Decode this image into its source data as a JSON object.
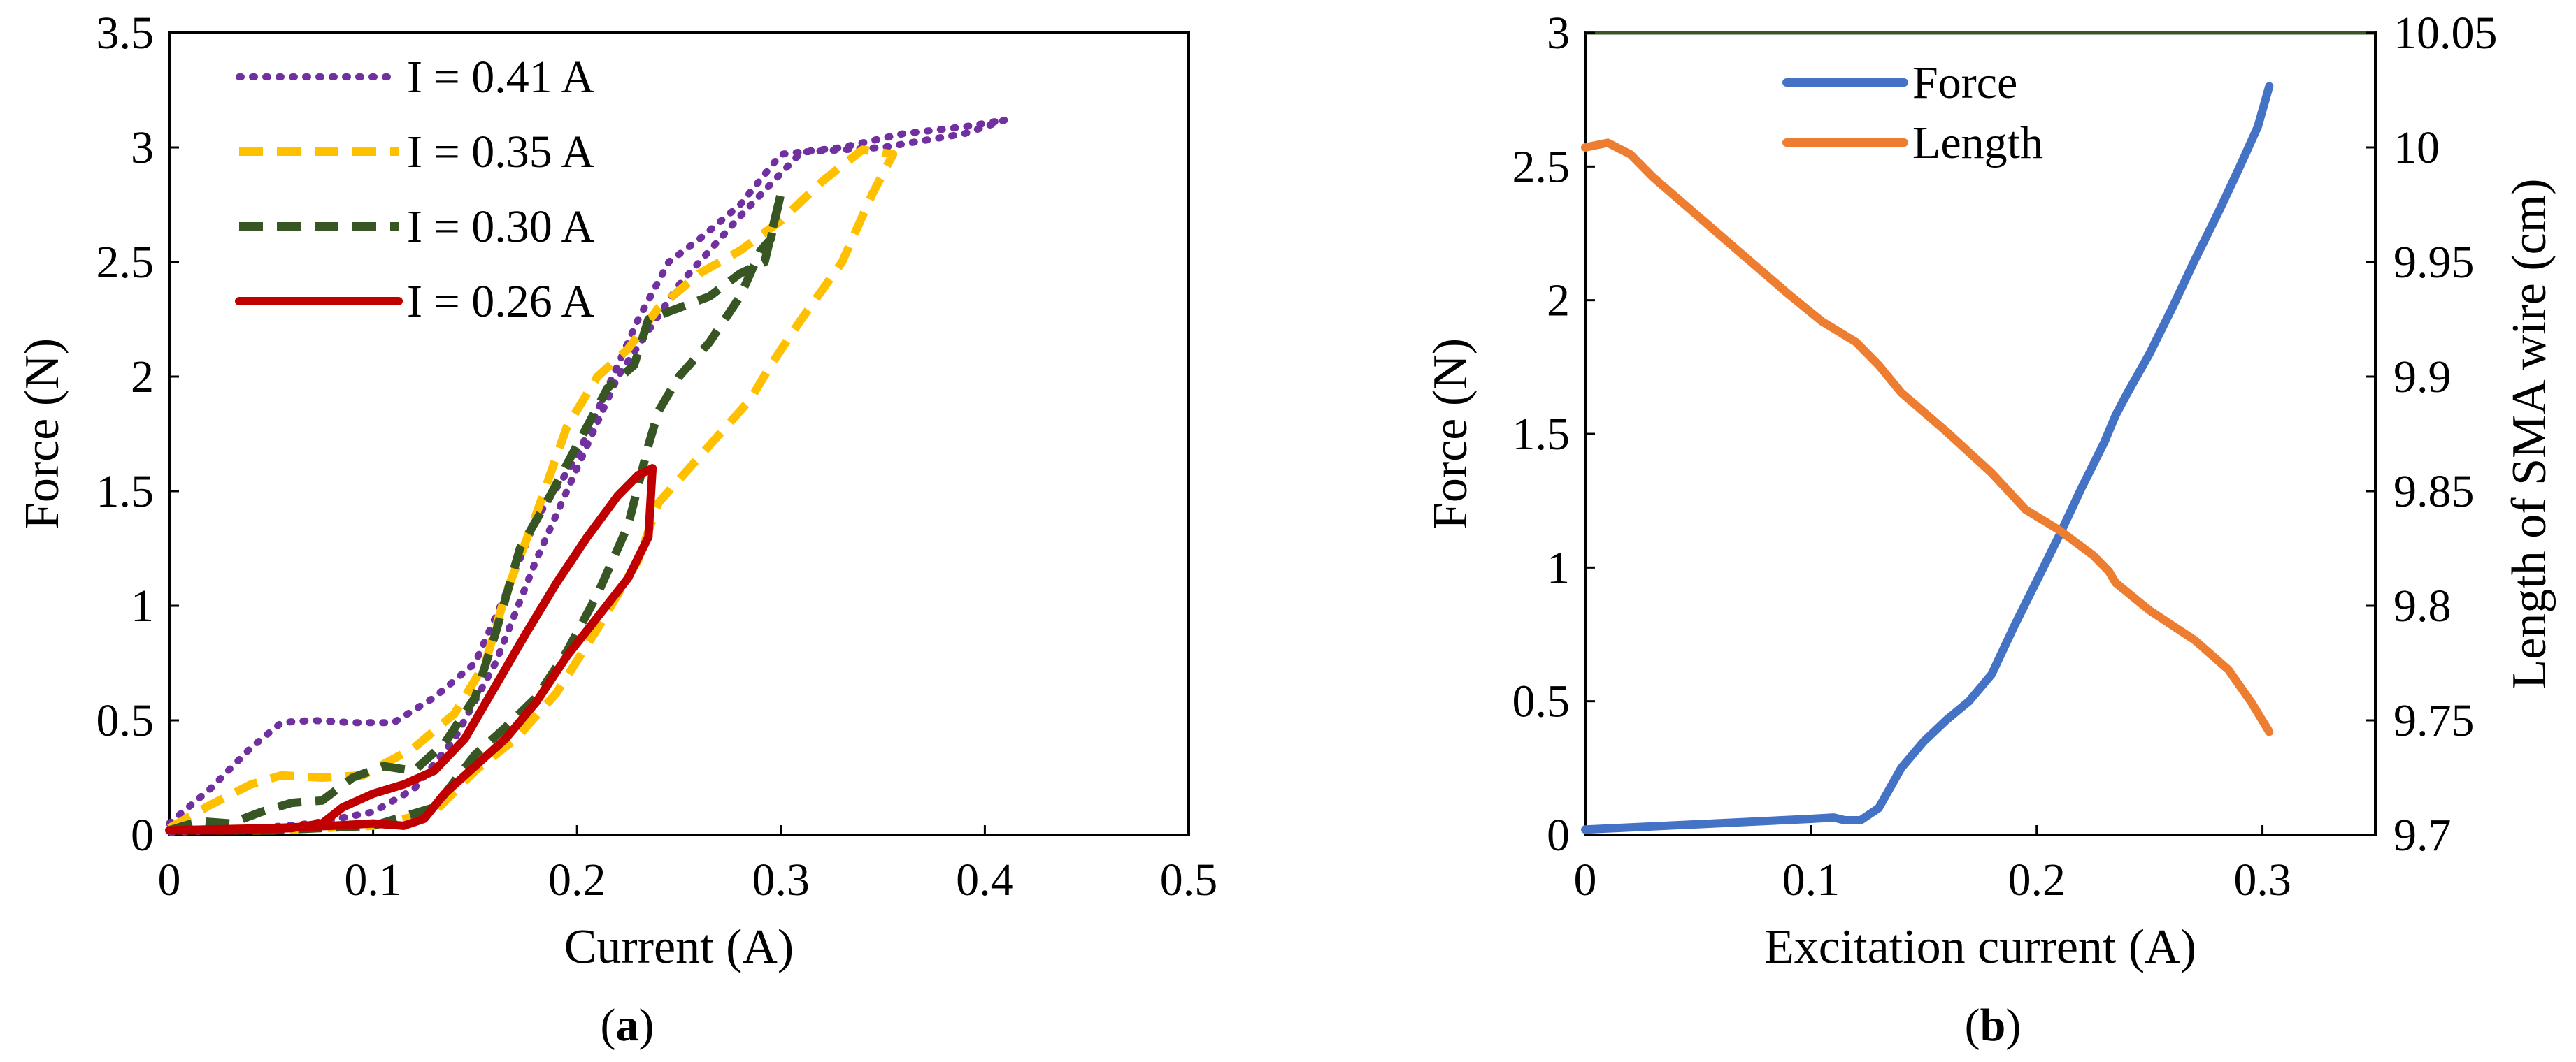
{
  "chart_data": [
    {
      "type": "line",
      "panel_label": "a",
      "title": "",
      "xlabel": "Current (A)",
      "ylabel": "Force (N)",
      "xlim": [
        0,
        0.5
      ],
      "ylim": [
        0,
        3.5
      ],
      "xticks": [
        0,
        0.1,
        0.2,
        0.3,
        0.4,
        0.5
      ],
      "xtick_labels": [
        "0",
        "0.1",
        "0.2",
        "0.3",
        "0.4",
        "0.5"
      ],
      "yticks": [
        0,
        0.5,
        1,
        1.5,
        2,
        2.5,
        3,
        3.5
      ],
      "ytick_labels": [
        "0",
        "0.5",
        "1",
        "1.5",
        "2",
        "2.5",
        "3",
        "3.5"
      ],
      "grid": false,
      "legend_position": "top-left",
      "series": [
        {
          "name": "I = 0.41 A",
          "color": "#7030a0",
          "style": "dotted",
          "points": [
            [
              0,
              0.05
            ],
            [
              0.02,
              0.2
            ],
            [
              0.04,
              0.38
            ],
            [
              0.055,
              0.49
            ],
            [
              0.07,
              0.5
            ],
            [
              0.09,
              0.49
            ],
            [
              0.11,
              0.49
            ],
            [
              0.13,
              0.6
            ],
            [
              0.15,
              0.75
            ],
            [
              0.165,
              1.05
            ],
            [
              0.18,
              1.38
            ],
            [
              0.2,
              1.65
            ],
            [
              0.215,
              1.95
            ],
            [
              0.23,
              2.25
            ],
            [
              0.245,
              2.5
            ],
            [
              0.26,
              2.6
            ],
            [
              0.28,
              2.75
            ],
            [
              0.3,
              2.97
            ],
            [
              0.33,
              3.0
            ],
            [
              0.36,
              3.06
            ],
            [
              0.39,
              3.09
            ],
            [
              0.41,
              3.12
            ],
            [
              0.39,
              3.06
            ],
            [
              0.35,
              3.0
            ],
            [
              0.31,
              2.98
            ],
            [
              0.28,
              2.7
            ],
            [
              0.25,
              2.4
            ],
            [
              0.22,
              2.0
            ],
            [
              0.2,
              1.6
            ],
            [
              0.18,
              1.2
            ],
            [
              0.16,
              0.75
            ],
            [
              0.14,
              0.42
            ],
            [
              0.12,
              0.2
            ],
            [
              0.1,
              0.1
            ],
            [
              0.07,
              0.05
            ],
            [
              0.03,
              0.02
            ],
            [
              0,
              0.01
            ]
          ]
        },
        {
          "name": "I = 0.35 A",
          "color": "#ffc000",
          "style": "dashed",
          "points": [
            [
              0,
              0.03
            ],
            [
              0.02,
              0.13
            ],
            [
              0.04,
              0.22
            ],
            [
              0.055,
              0.26
            ],
            [
              0.075,
              0.25
            ],
            [
              0.095,
              0.26
            ],
            [
              0.12,
              0.38
            ],
            [
              0.14,
              0.53
            ],
            [
              0.155,
              0.75
            ],
            [
              0.165,
              1.05
            ],
            [
              0.18,
              1.4
            ],
            [
              0.195,
              1.78
            ],
            [
              0.21,
              2.0
            ],
            [
              0.225,
              2.12
            ],
            [
              0.24,
              2.3
            ],
            [
              0.26,
              2.45
            ],
            [
              0.28,
              2.55
            ],
            [
              0.3,
              2.68
            ],
            [
              0.32,
              2.85
            ],
            [
              0.34,
              2.99
            ],
            [
              0.355,
              2.97
            ],
            [
              0.345,
              2.8
            ],
            [
              0.33,
              2.5
            ],
            [
              0.31,
              2.25
            ],
            [
              0.295,
              2.05
            ],
            [
              0.285,
              1.9
            ],
            [
              0.27,
              1.75
            ],
            [
              0.255,
              1.6
            ],
            [
              0.24,
              1.45
            ],
            [
              0.23,
              1.2
            ],
            [
              0.21,
              0.9
            ],
            [
              0.19,
              0.62
            ],
            [
              0.17,
              0.42
            ],
            [
              0.15,
              0.28
            ],
            [
              0.13,
              0.1
            ],
            [
              0.1,
              0.04
            ],
            [
              0.05,
              0.02
            ],
            [
              0,
              0.02
            ]
          ]
        },
        {
          "name": "I = 0.30 A",
          "color": "#375623",
          "style": "dashed",
          "points": [
            [
              0,
              0.02
            ],
            [
              0.015,
              0.06
            ],
            [
              0.03,
              0.05
            ],
            [
              0.045,
              0.1
            ],
            [
              0.06,
              0.14
            ],
            [
              0.075,
              0.15
            ],
            [
              0.09,
              0.25
            ],
            [
              0.105,
              0.3
            ],
            [
              0.12,
              0.28
            ],
            [
              0.135,
              0.4
            ],
            [
              0.15,
              0.6
            ],
            [
              0.16,
              0.88
            ],
            [
              0.172,
              1.25
            ],
            [
              0.185,
              1.45
            ],
            [
              0.2,
              1.7
            ],
            [
              0.215,
              1.95
            ],
            [
              0.228,
              2.05
            ],
            [
              0.235,
              2.25
            ],
            [
              0.25,
              2.3
            ],
            [
              0.265,
              2.35
            ],
            [
              0.28,
              2.45
            ],
            [
              0.292,
              2.5
            ],
            [
              0.3,
              2.8
            ],
            [
              0.295,
              2.6
            ],
            [
              0.29,
              2.55
            ],
            [
              0.28,
              2.35
            ],
            [
              0.265,
              2.15
            ],
            [
              0.25,
              2.0
            ],
            [
              0.24,
              1.85
            ],
            [
              0.235,
              1.7
            ],
            [
              0.225,
              1.35
            ],
            [
              0.21,
              1.05
            ],
            [
              0.195,
              0.8
            ],
            [
              0.18,
              0.6
            ],
            [
              0.165,
              0.47
            ],
            [
              0.15,
              0.35
            ],
            [
              0.13,
              0.12
            ],
            [
              0.1,
              0.04
            ],
            [
              0.05,
              0.02
            ],
            [
              0,
              0.02
            ]
          ]
        },
        {
          "name": "I = 0.26 A",
          "color": "#c00000",
          "style": "solid",
          "points": [
            [
              0,
              0.02
            ],
            [
              0.03,
              0.02
            ],
            [
              0.06,
              0.03
            ],
            [
              0.075,
              0.05
            ],
            [
              0.085,
              0.12
            ],
            [
              0.1,
              0.18
            ],
            [
              0.115,
              0.22
            ],
            [
              0.13,
              0.28
            ],
            [
              0.145,
              0.42
            ],
            [
              0.16,
              0.65
            ],
            [
              0.175,
              0.88
            ],
            [
              0.19,
              1.1
            ],
            [
              0.205,
              1.3
            ],
            [
              0.22,
              1.48
            ],
            [
              0.23,
              1.57
            ],
            [
              0.237,
              1.6
            ],
            [
              0.235,
              1.3
            ],
            [
              0.225,
              1.12
            ],
            [
              0.21,
              0.95
            ],
            [
              0.195,
              0.78
            ],
            [
              0.18,
              0.58
            ],
            [
              0.165,
              0.42
            ],
            [
              0.15,
              0.3
            ],
            [
              0.135,
              0.18
            ],
            [
              0.125,
              0.07
            ],
            [
              0.115,
              0.04
            ],
            [
              0.1,
              0.05
            ],
            [
              0.08,
              0.04
            ],
            [
              0.05,
              0.03
            ],
            [
              0,
              0.02
            ]
          ]
        }
      ]
    },
    {
      "type": "line",
      "panel_label": "b",
      "title": "",
      "xlabel": "Excitation current (A)",
      "ylabel": "Force  (N)",
      "y2label": "Length of  SMA wire (cm)",
      "xlim": [
        0,
        0.35
      ],
      "ylim": [
        0,
        3
      ],
      "y2lim": [
        9.7,
        10.05
      ],
      "xticks": [
        0,
        0.1,
        0.2,
        0.3
      ],
      "xtick_labels": [
        "0",
        "0.1",
        "0.2",
        "0.3"
      ],
      "yticks": [
        0,
        0.5,
        1,
        1.5,
        2,
        2.5,
        3
      ],
      "ytick_labels": [
        "0",
        "0.5",
        "1",
        "1.5",
        "2",
        "2.5",
        "3"
      ],
      "y2ticks": [
        9.7,
        9.75,
        9.8,
        9.85,
        9.9,
        9.95,
        10,
        10.05
      ],
      "y2tick_labels": [
        "9.7",
        "9.75",
        "9.8",
        "9.85",
        "9.9",
        "9.95",
        "10",
        "10.05"
      ],
      "grid": false,
      "legend_position": "top-center",
      "series": [
        {
          "name": "Force",
          "color": "#4472c4",
          "axis": "left",
          "points": [
            [
              0,
              0.02
            ],
            [
              0.025,
              0.03
            ],
            [
              0.05,
              0.04
            ],
            [
              0.075,
              0.05
            ],
            [
              0.1,
              0.06
            ],
            [
              0.11,
              0.065
            ],
            [
              0.115,
              0.055
            ],
            [
              0.122,
              0.055
            ],
            [
              0.13,
              0.1
            ],
            [
              0.14,
              0.25
            ],
            [
              0.15,
              0.35
            ],
            [
              0.16,
              0.43
            ],
            [
              0.17,
              0.5
            ],
            [
              0.18,
              0.6
            ],
            [
              0.19,
              0.78
            ],
            [
              0.2,
              0.95
            ],
            [
              0.21,
              1.12
            ],
            [
              0.22,
              1.3
            ],
            [
              0.23,
              1.47
            ],
            [
              0.235,
              1.57
            ],
            [
              0.24,
              1.65
            ],
            [
              0.25,
              1.8
            ],
            [
              0.26,
              1.97
            ],
            [
              0.27,
              2.15
            ],
            [
              0.28,
              2.32
            ],
            [
              0.29,
              2.5
            ],
            [
              0.298,
              2.65
            ],
            [
              0.303,
              2.8
            ]
          ]
        },
        {
          "name": "Length",
          "color": "#ed7d31",
          "axis": "right",
          "points": [
            [
              0,
              10.0
            ],
            [
              0.01,
              10.002
            ],
            [
              0.02,
              9.997
            ],
            [
              0.03,
              9.987
            ],
            [
              0.05,
              9.97
            ],
            [
              0.07,
              9.953
            ],
            [
              0.09,
              9.936
            ],
            [
              0.105,
              9.924
            ],
            [
              0.12,
              9.915
            ],
            [
              0.13,
              9.905
            ],
            [
              0.14,
              9.893
            ],
            [
              0.16,
              9.876
            ],
            [
              0.18,
              9.858
            ],
            [
              0.195,
              9.842
            ],
            [
              0.21,
              9.833
            ],
            [
              0.225,
              9.822
            ],
            [
              0.232,
              9.815
            ],
            [
              0.235,
              9.81
            ],
            [
              0.25,
              9.798
            ],
            [
              0.27,
              9.785
            ],
            [
              0.285,
              9.772
            ],
            [
              0.295,
              9.758
            ],
            [
              0.303,
              9.745
            ]
          ]
        }
      ]
    }
  ]
}
